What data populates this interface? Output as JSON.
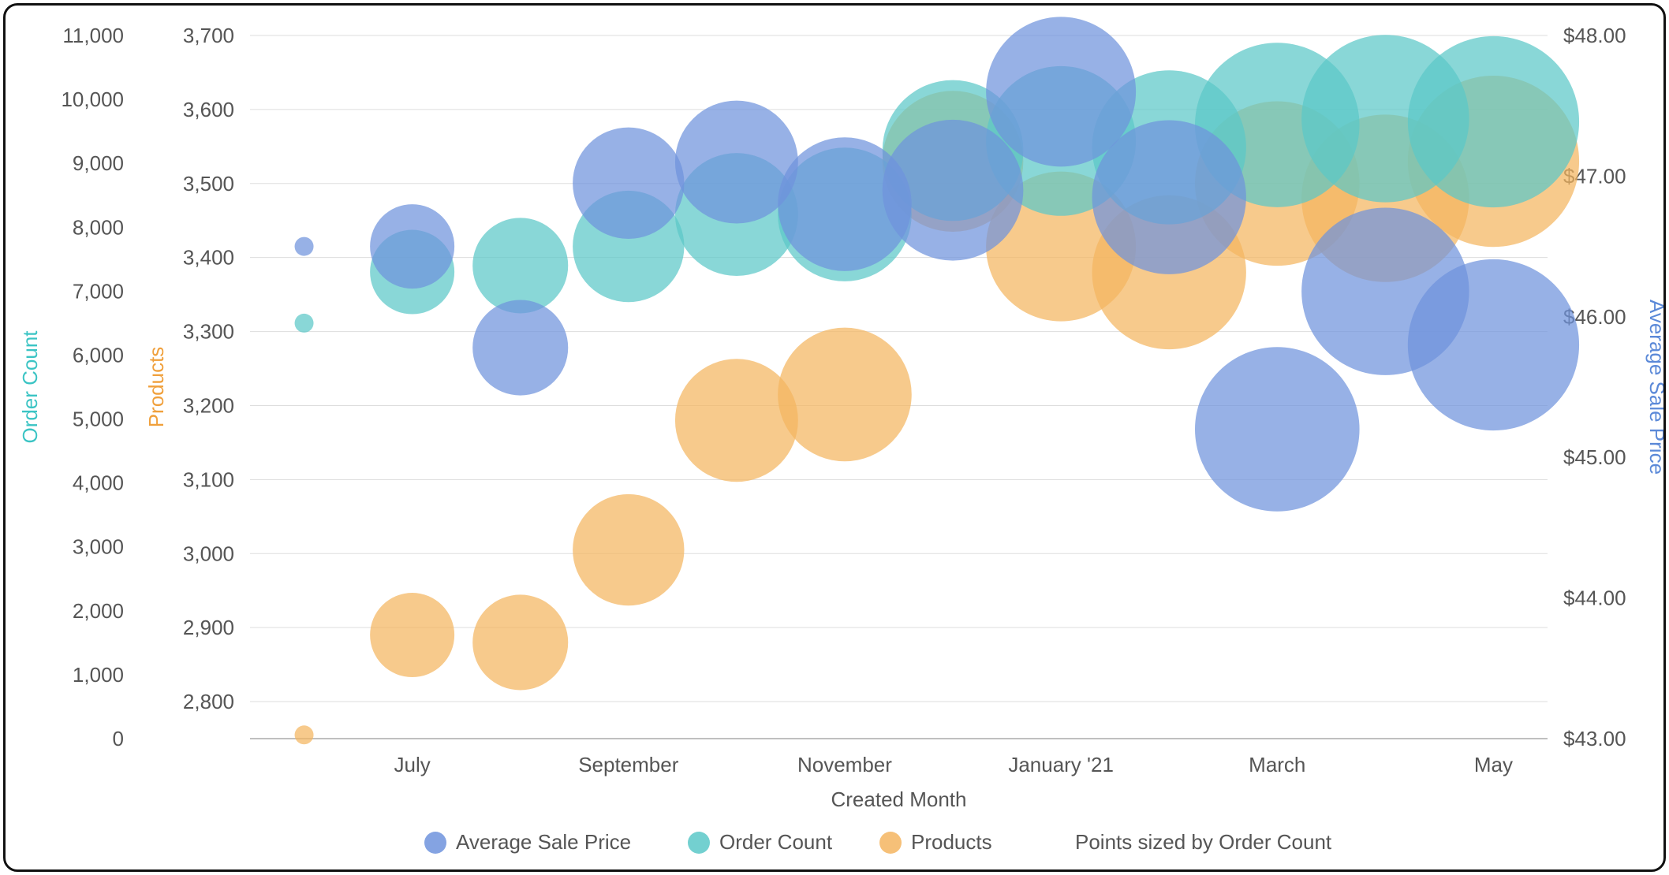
{
  "chart": {
    "type": "bubble",
    "background_color": "#ffffff",
    "grid_color": "#dddddd",
    "baseline_color": "#aaaaaa",
    "font_family": "Helvetica Neue, Arial, sans-serif",
    "tick_font_size": 26,
    "title_font_size": 26,
    "legend_font_size": 26,
    "bubble_opacity": 0.72,
    "x_axis": {
      "title": "Created Month",
      "tick_labels": [
        "July",
        "September",
        "November",
        "January '21",
        "March",
        "May"
      ]
    },
    "y_left_outer": {
      "title": "Order Count",
      "title_color": "#3bc4c4",
      "min": 0,
      "max": 11000,
      "step": 1000,
      "ticks": [
        "0",
        "1,000",
        "2,000",
        "3,000",
        "4,000",
        "5,000",
        "6,000",
        "7,000",
        "8,000",
        "9,000",
        "10,000",
        "11,000"
      ]
    },
    "y_left_inner": {
      "title": "Products",
      "title_color": "#f0a03c",
      "min": 2750,
      "max": 3700,
      "step": 100,
      "ticks": [
        "2,800",
        "2,900",
        "3,000",
        "3,100",
        "3,200",
        "3,300",
        "3,400",
        "3,500",
        "3,600",
        "3,700"
      ]
    },
    "y_right": {
      "title": "Average Sale Price",
      "title_color": "#5b89d8",
      "min": 43.0,
      "max": 48.0,
      "step": 1.0,
      "ticks": [
        "$43.00",
        "$44.00",
        "$45.00",
        "$46.00",
        "$47.00",
        "$48.00"
      ]
    },
    "series": {
      "avg_sale_price": {
        "label": "Average Sale Price",
        "color": "#6f93dd",
        "axis": "right",
        "points": [
          {
            "xi": 0,
            "y": 46.5,
            "size": 400
          },
          {
            "xi": 1,
            "y": 46.5,
            "size": 2300
          },
          {
            "xi": 2,
            "y": 45.78,
            "size": 3000
          },
          {
            "xi": 3,
            "y": 46.95,
            "size": 4200
          },
          {
            "xi": 4,
            "y": 47.1,
            "size": 5200
          },
          {
            "xi": 5,
            "y": 46.8,
            "size": 6250
          },
          {
            "xi": 6,
            "y": 46.9,
            "size": 7000
          },
          {
            "xi": 7,
            "y": 47.6,
            "size": 8000
          },
          {
            "xi": 8,
            "y": 46.85,
            "size": 8500
          },
          {
            "xi": 9,
            "y": 45.2,
            "size": 9800
          },
          {
            "xi": 10,
            "y": 46.18,
            "size": 10200
          },
          {
            "xi": 11,
            "y": 45.8,
            "size": 10700
          }
        ]
      },
      "order_count": {
        "label": "Order Count",
        "color": "#5bc8c8",
        "axis": "left_outer",
        "points": [
          {
            "xi": 0,
            "y": 6500,
            "size": 400
          },
          {
            "xi": 1,
            "y": 7300,
            "size": 2300
          },
          {
            "xi": 2,
            "y": 7400,
            "size": 3000
          },
          {
            "xi": 3,
            "y": 7700,
            "size": 4200
          },
          {
            "xi": 4,
            "y": 8200,
            "size": 5200
          },
          {
            "xi": 5,
            "y": 8200,
            "size": 6250
          },
          {
            "xi": 6,
            "y": 9200,
            "size": 7000
          },
          {
            "xi": 7,
            "y": 9350,
            "size": 8000
          },
          {
            "xi": 8,
            "y": 9250,
            "size": 8500
          },
          {
            "xi": 9,
            "y": 9600,
            "size": 9800
          },
          {
            "xi": 10,
            "y": 9700,
            "size": 10200
          },
          {
            "xi": 11,
            "y": 9650,
            "size": 10700
          }
        ]
      },
      "products": {
        "label": "Products",
        "color": "#f4b560",
        "axis": "left_inner",
        "points": [
          {
            "xi": 0,
            "y": 2755,
            "size": 400
          },
          {
            "xi": 1,
            "y": 2890,
            "size": 2300
          },
          {
            "xi": 2,
            "y": 2880,
            "size": 3000
          },
          {
            "xi": 3,
            "y": 3005,
            "size": 4200
          },
          {
            "xi": 4,
            "y": 3180,
            "size": 5200
          },
          {
            "xi": 5,
            "y": 3215,
            "size": 6250
          },
          {
            "xi": 6,
            "y": 3530,
            "size": 7000
          },
          {
            "xi": 7,
            "y": 3415,
            "size": 8000
          },
          {
            "xi": 8,
            "y": 3380,
            "size": 8500
          },
          {
            "xi": 9,
            "y": 3500,
            "size": 9800
          },
          {
            "xi": 10,
            "y": 3480,
            "size": 10200
          },
          {
            "xi": 11,
            "y": 3530,
            "size": 10700
          }
        ]
      }
    },
    "size_by": {
      "label": "Points sized by Order Count",
      "min_value": 400,
      "min_radius": 12,
      "max_value": 11000,
      "max_radius": 110
    },
    "legend": [
      {
        "label": "Average Sale Price",
        "color": "#6f93dd"
      },
      {
        "label": "Order Count",
        "color": "#5bc8c8"
      },
      {
        "label": "Products",
        "color": "#f4b560"
      }
    ]
  }
}
